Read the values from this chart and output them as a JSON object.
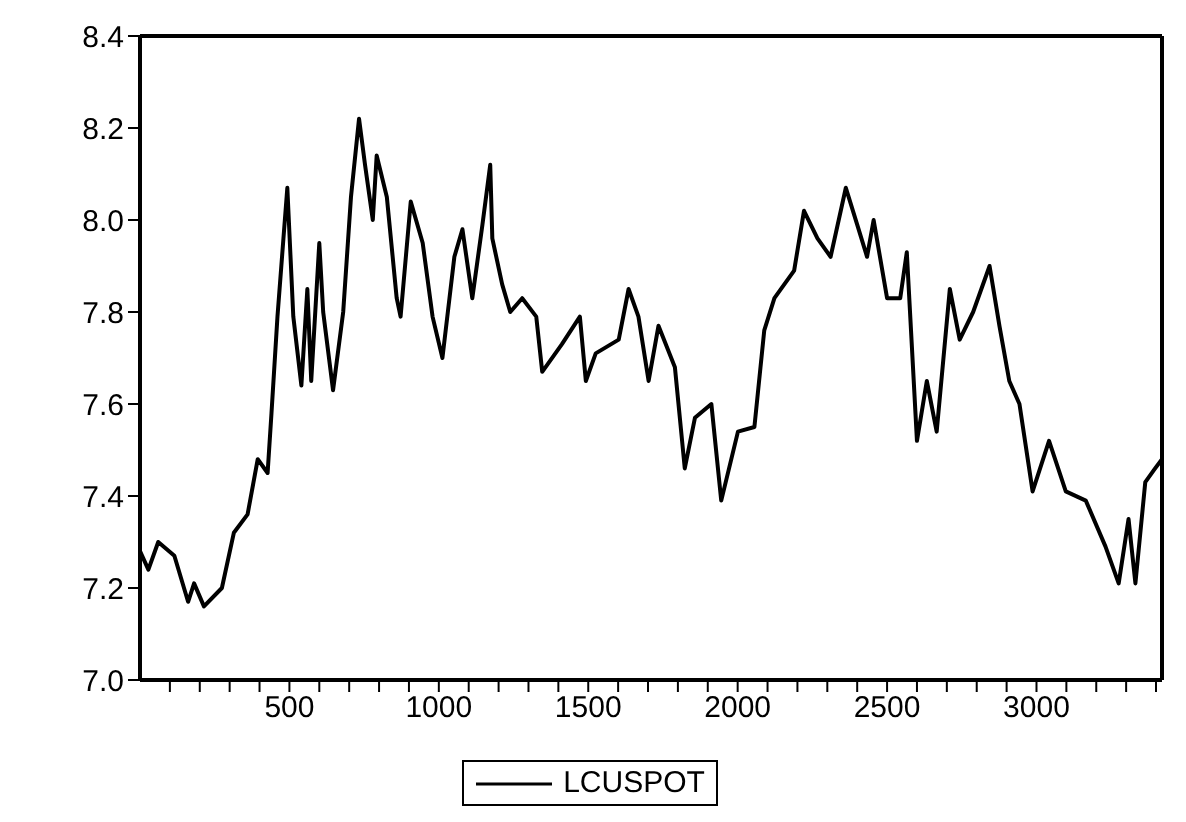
{
  "chart_data": {
    "type": "line",
    "x": [
      0,
      28,
      61,
      115,
      161,
      181,
      214,
      274,
      314,
      360,
      394,
      427,
      440,
      460,
      480,
      493,
      513,
      540,
      560,
      573,
      600,
      613,
      646,
      680,
      706,
      733,
      753,
      779,
      792,
      826,
      859,
      872,
      906,
      946,
      979,
      1012,
      1052,
      1079,
      1112,
      1146,
      1172,
      1179,
      1212,
      1239,
      1279,
      1326,
      1346,
      1412,
      1472,
      1492,
      1525,
      1602,
      1635,
      1668,
      1702,
      1735,
      1790,
      1823,
      1857,
      1912,
      1945,
      2001,
      2056,
      2089,
      2123,
      2189,
      2222,
      2267,
      2311,
      2362,
      2400,
      2433,
      2455,
      2500,
      2544,
      2566,
      2600,
      2633,
      2666,
      2710,
      2743,
      2788,
      2843,
      2876,
      2909,
      2943,
      2987,
      3042,
      3098,
      3165,
      3231,
      3275,
      3308,
      3331,
      3364,
      3397,
      3420
    ],
    "series": [
      {
        "name": "LCUSPOT",
        "color": "#000000",
        "values": [
          7.28,
          7.24,
          7.3,
          7.27,
          7.17,
          7.21,
          7.16,
          7.2,
          7.32,
          7.36,
          7.48,
          7.45,
          7.58,
          7.79,
          7.96,
          8.07,
          7.79,
          7.64,
          7.85,
          7.65,
          7.95,
          7.8,
          7.63,
          7.8,
          8.05,
          8.22,
          8.12,
          8.0,
          8.14,
          8.05,
          7.83,
          7.79,
          8.04,
          7.95,
          7.79,
          7.7,
          7.92,
          7.98,
          7.83,
          7.99,
          8.12,
          7.96,
          7.86,
          7.8,
          7.83,
          7.79,
          7.67,
          7.73,
          7.79,
          7.65,
          7.71,
          7.74,
          7.85,
          7.79,
          7.65,
          7.77,
          7.68,
          7.46,
          7.57,
          7.6,
          7.39,
          7.54,
          7.55,
          7.76,
          7.83,
          7.89,
          8.02,
          7.96,
          7.92,
          8.07,
          7.99,
          7.92,
          8.0,
          7.83,
          7.83,
          7.93,
          7.52,
          7.65,
          7.54,
          7.85,
          7.74,
          7.8,
          7.9,
          7.77,
          7.65,
          7.6,
          7.41,
          7.52,
          7.41,
          7.39,
          7.29,
          7.21,
          7.35,
          7.21,
          7.43,
          7.46,
          7.48
        ]
      }
    ],
    "xlim": [
      0,
      3420
    ],
    "xticks": [
      {
        "value": 100,
        "label": null
      },
      {
        "value": 200,
        "label": null
      },
      {
        "value": 300,
        "label": null
      },
      {
        "value": 400,
        "label": null
      },
      500,
      {
        "value": 600,
        "label": null
      },
      {
        "value": 700,
        "label": null
      },
      {
        "value": 800,
        "label": null
      },
      {
        "value": 900,
        "label": null
      },
      1000,
      {
        "value": 1100,
        "label": null
      },
      {
        "value": 1200,
        "label": null
      },
      {
        "value": 1300,
        "label": null
      },
      {
        "value": 1400,
        "label": null
      },
      1500,
      {
        "value": 1600,
        "label": null
      },
      {
        "value": 1700,
        "label": null
      },
      {
        "value": 1800,
        "label": null
      },
      {
        "value": 1900,
        "label": null
      },
      2000,
      {
        "value": 2100,
        "label": null
      },
      {
        "value": 2200,
        "label": null
      },
      {
        "value": 2300,
        "label": null
      },
      {
        "value": 2400,
        "label": null
      },
      2500,
      {
        "value": 2600,
        "label": null
      },
      {
        "value": 2700,
        "label": null
      },
      {
        "value": 2800,
        "label": null
      },
      {
        "value": 2900,
        "label": null
      },
      3000,
      {
        "value": 3100,
        "label": null
      },
      {
        "value": 3200,
        "label": null
      },
      {
        "value": 3300,
        "label": null
      },
      {
        "value": 3400,
        "label": null
      }
    ],
    "ylim": [
      7.0,
      8.4
    ],
    "yticks": [
      {
        "value": 7.0,
        "label": "7.0"
      },
      7.2,
      7.4,
      7.6,
      7.8,
      {
        "value": 8.0,
        "label": "8.0"
      },
      8.2,
      8.4
    ],
    "legend": "bottom",
    "marker": "none",
    "line_style": "solid"
  }
}
